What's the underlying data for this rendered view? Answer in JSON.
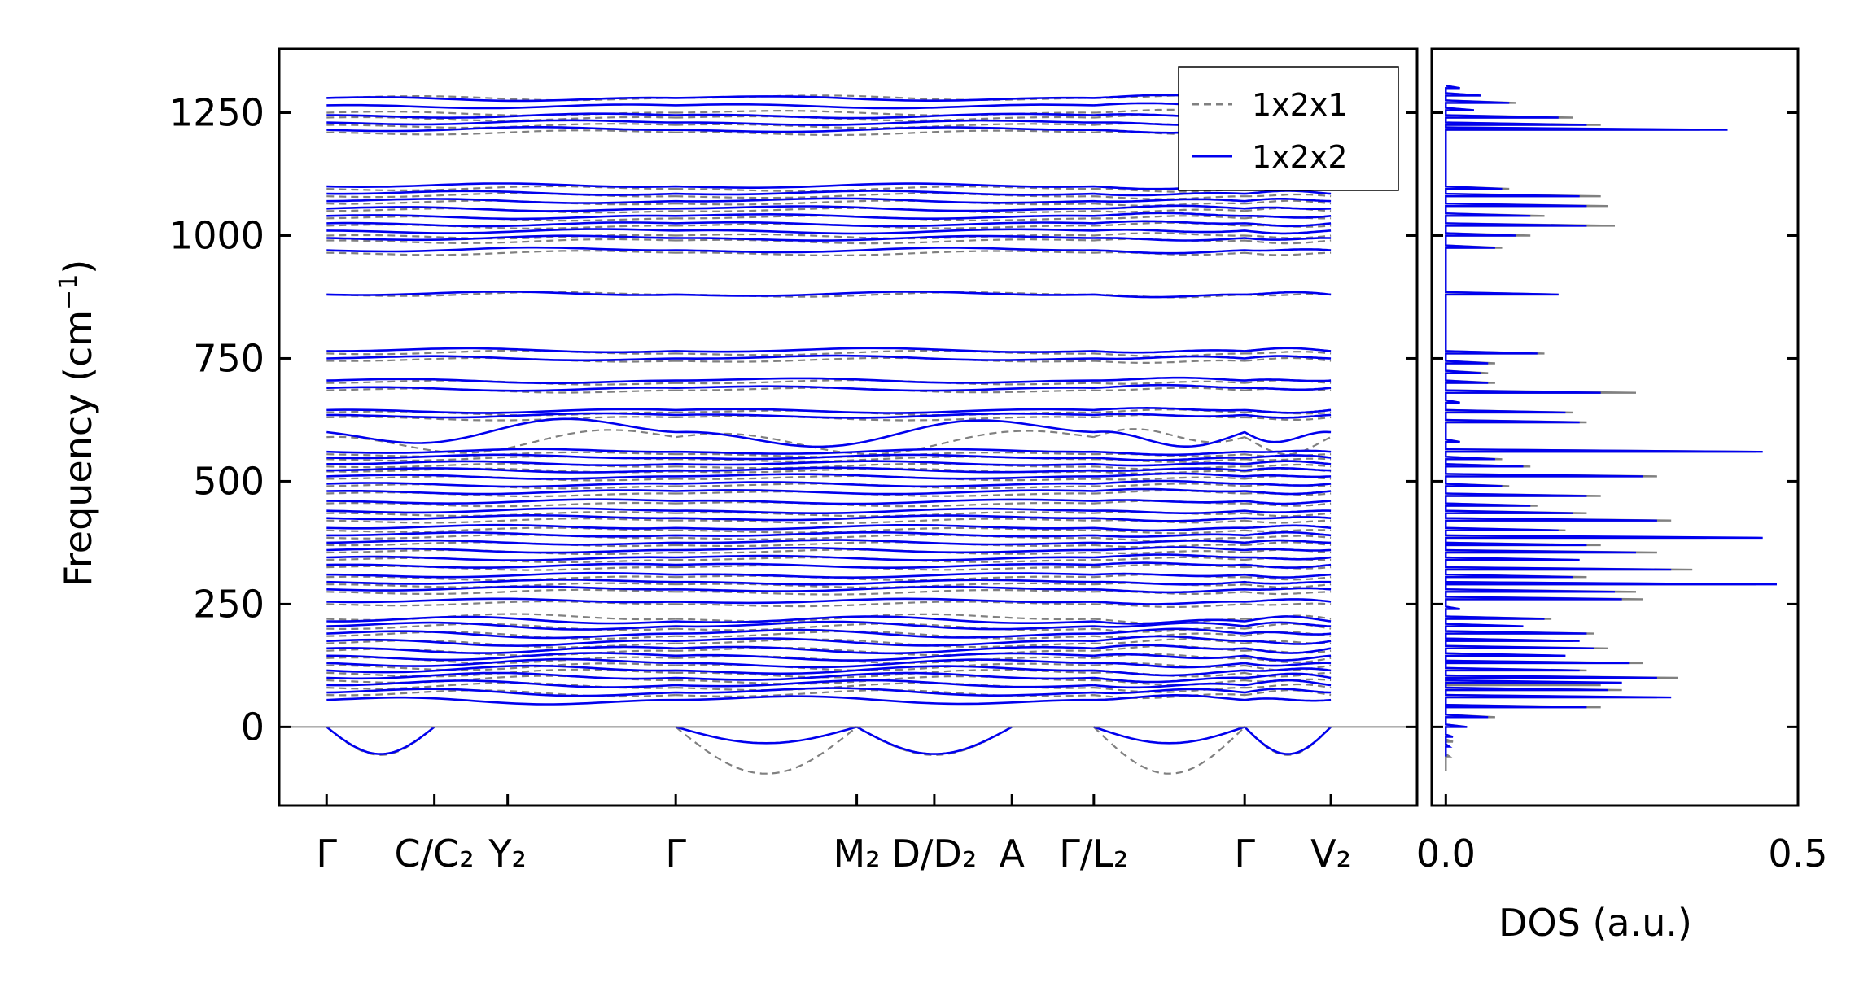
{
  "chart_data": [
    {
      "type": "line",
      "panel": "band-structure",
      "ylabel": "Frequency (cm",
      "ylabel_sup": "−1",
      "ylabel_close": ")",
      "ylim": [
        -160,
        1380
      ],
      "yticks": [
        0,
        250,
        500,
        750,
        1000,
        1250
      ],
      "ytick_labels": [
        "0",
        "250",
        "500",
        "750",
        "1000",
        "1250"
      ],
      "xlim": [
        0,
        13.2
      ],
      "xticks": [
        {
          "pos": 0.55,
          "label": "Γ"
        },
        {
          "pos": 1.8,
          "label": "C/C₂"
        },
        {
          "pos": 2.65,
          "label": "Y₂"
        },
        {
          "pos": 4.6,
          "label": "Γ"
        },
        {
          "pos": 6.7,
          "label": "M₂"
        },
        {
          "pos": 7.6,
          "label": "D/D₂"
        },
        {
          "pos": 8.5,
          "label": "A"
        },
        {
          "pos": 9.45,
          "label": "Γ/L₂"
        },
        {
          "pos": 11.2,
          "label": "Γ"
        },
        {
          "pos": 12.2,
          "label": "V₂"
        }
      ],
      "discontinuities": [
        4.6,
        9.45,
        11.2
      ],
      "zero_line": 0,
      "legend": {
        "placement": "top-right",
        "entries": [
          {
            "label": "1x2x1",
            "color": "#808080",
            "style": "dashed"
          },
          {
            "label": "1x2x2",
            "color": "#0000ee",
            "style": "solid"
          }
        ]
      },
      "series": [
        {
          "name": "1x2x1",
          "color": "#808080",
          "bands_cm1": [
            1280,
            1250,
            1240,
            1225,
            1210,
            1095,
            1080,
            1065,
            1050,
            1035,
            1020,
            1000,
            990,
            965,
            880,
            760,
            745,
            700,
            685,
            640,
            630,
            590,
            555,
            545,
            530,
            520,
            505,
            490,
            475,
            455,
            435,
            420,
            400,
            385,
            370,
            355,
            340,
            325,
            305,
            290,
            275,
            250,
            220,
            200,
            185,
            170,
            155,
            140,
            125,
            110,
            95,
            80,
            65
          ],
          "acoustic_min_cm1": -95
        },
        {
          "name": "1x2x2",
          "color": "#0000ee",
          "bands_cm1": [
            1280,
            1265,
            1245,
            1230,
            1215,
            1100,
            1085,
            1070,
            1055,
            1040,
            1025,
            1010,
            995,
            970,
            880,
            765,
            750,
            705,
            690,
            645,
            635,
            600,
            560,
            548,
            535,
            522,
            510,
            495,
            480,
            460,
            440,
            425,
            405,
            390,
            375,
            360,
            345,
            330,
            310,
            295,
            280,
            255,
            215,
            205,
            190,
            175,
            160,
            145,
            130,
            115,
            100,
            85,
            70,
            55
          ],
          "acoustic_min_cm1": -55
        }
      ]
    },
    {
      "type": "line",
      "panel": "dos",
      "xlabel": "DOS (a.u.)",
      "xlim": [
        -0.02,
        0.5
      ],
      "xticks": [
        0.0,
        0.5
      ],
      "xtick_labels": [
        "0.0",
        "0.5"
      ],
      "ylim": [
        -160,
        1380
      ],
      "series": [
        {
          "name": "1x2x1",
          "color": "#808080",
          "freq_cm1": [
            -90,
            -60,
            -30,
            0,
            20,
            40,
            60,
            75,
            85,
            100,
            115,
            130,
            145,
            160,
            175,
            190,
            205,
            220,
            240,
            260,
            275,
            290,
            305,
            320,
            340,
            355,
            370,
            385,
            400,
            420,
            435,
            450,
            470,
            490,
            510,
            530,
            545,
            560,
            580,
            620,
            640,
            660,
            680,
            700,
            720,
            740,
            760,
            790,
            880,
            960,
            975,
            1000,
            1020,
            1040,
            1060,
            1080,
            1095,
            1120,
            1200,
            1215,
            1225,
            1240,
            1255,
            1270,
            1285,
            1300
          ],
          "dos": [
            0.0,
            0.005,
            0.01,
            0.03,
            0.07,
            0.22,
            0.3,
            0.25,
            0.22,
            0.33,
            0.2,
            0.28,
            0.16,
            0.23,
            0.18,
            0.21,
            0.1,
            0.15,
            0.02,
            0.28,
            0.27,
            0.44,
            0.2,
            0.35,
            0.18,
            0.3,
            0.22,
            0.37,
            0.17,
            0.32,
            0.2,
            0.13,
            0.22,
            0.09,
            0.3,
            0.12,
            0.08,
            0.44,
            0.02,
            0.2,
            0.18,
            0.02,
            0.27,
            0.07,
            0.06,
            0.07,
            0.14,
            0.0,
            0.16,
            0.0,
            0.08,
            0.12,
            0.24,
            0.14,
            0.23,
            0.22,
            0.09,
            0.0,
            0.0,
            0.36,
            0.22,
            0.18,
            0.04,
            0.1,
            0.05,
            0.02
          ]
        },
        {
          "name": "1x2x2",
          "color": "#0000ee",
          "freq_cm1": [
            -60,
            -40,
            -20,
            0,
            20,
            40,
            60,
            75,
            90,
            100,
            115,
            130,
            145,
            160,
            175,
            190,
            205,
            220,
            240,
            260,
            275,
            290,
            305,
            320,
            340,
            355,
            370,
            385,
            400,
            420,
            435,
            450,
            470,
            490,
            510,
            530,
            545,
            560,
            580,
            620,
            640,
            660,
            680,
            700,
            720,
            740,
            760,
            790,
            880,
            960,
            975,
            1000,
            1020,
            1040,
            1060,
            1080,
            1095,
            1120,
            1200,
            1215,
            1225,
            1240,
            1255,
            1270,
            1285,
            1300
          ],
          "dos": [
            0.0,
            0.005,
            0.01,
            0.03,
            0.06,
            0.2,
            0.32,
            0.23,
            0.25,
            0.3,
            0.19,
            0.26,
            0.17,
            0.21,
            0.19,
            0.2,
            0.11,
            0.14,
            0.02,
            0.25,
            0.24,
            0.47,
            0.18,
            0.32,
            0.19,
            0.27,
            0.2,
            0.45,
            0.16,
            0.3,
            0.18,
            0.12,
            0.2,
            0.08,
            0.28,
            0.11,
            0.07,
            0.45,
            0.02,
            0.19,
            0.17,
            0.02,
            0.22,
            0.06,
            0.05,
            0.06,
            0.13,
            0.0,
            0.16,
            0.0,
            0.07,
            0.1,
            0.2,
            0.12,
            0.2,
            0.19,
            0.08,
            0.0,
            0.0,
            0.4,
            0.2,
            0.16,
            0.04,
            0.09,
            0.05,
            0.02
          ]
        }
      ]
    }
  ]
}
